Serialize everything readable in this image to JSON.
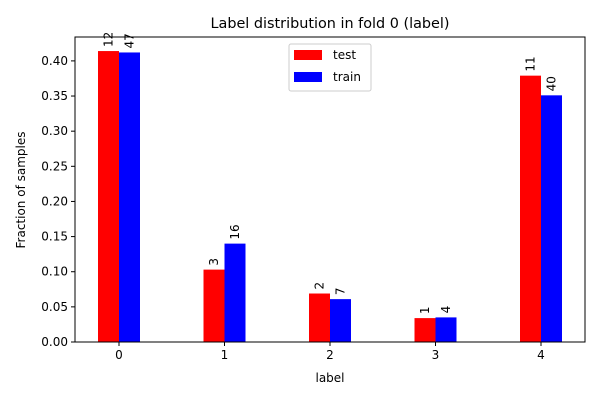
{
  "chart_data": {
    "type": "bar",
    "title": "Label distribution in fold 0 (label)",
    "xlabel": "label",
    "ylabel": "Fraction of samples",
    "categories": [
      "0",
      "1",
      "2",
      "3",
      "4"
    ],
    "ylim": [
      0,
      0.434
    ],
    "yticks": [
      "0.00",
      "0.05",
      "0.10",
      "0.15",
      "0.20",
      "0.25",
      "0.30",
      "0.35",
      "0.40"
    ],
    "grid": false,
    "legend_position": "top-center",
    "series": [
      {
        "name": "test",
        "color": "#ff0000",
        "values": [
          0.414,
          0.103,
          0.069,
          0.034,
          0.379
        ],
        "labels": [
          "12",
          "3",
          "2",
          "1",
          "11"
        ]
      },
      {
        "name": "train",
        "color": "#0000ff",
        "values": [
          0.412,
          0.14,
          0.061,
          0.035,
          0.351
        ],
        "labels": [
          "47",
          "16",
          "7",
          "4",
          "40"
        ]
      }
    ]
  }
}
